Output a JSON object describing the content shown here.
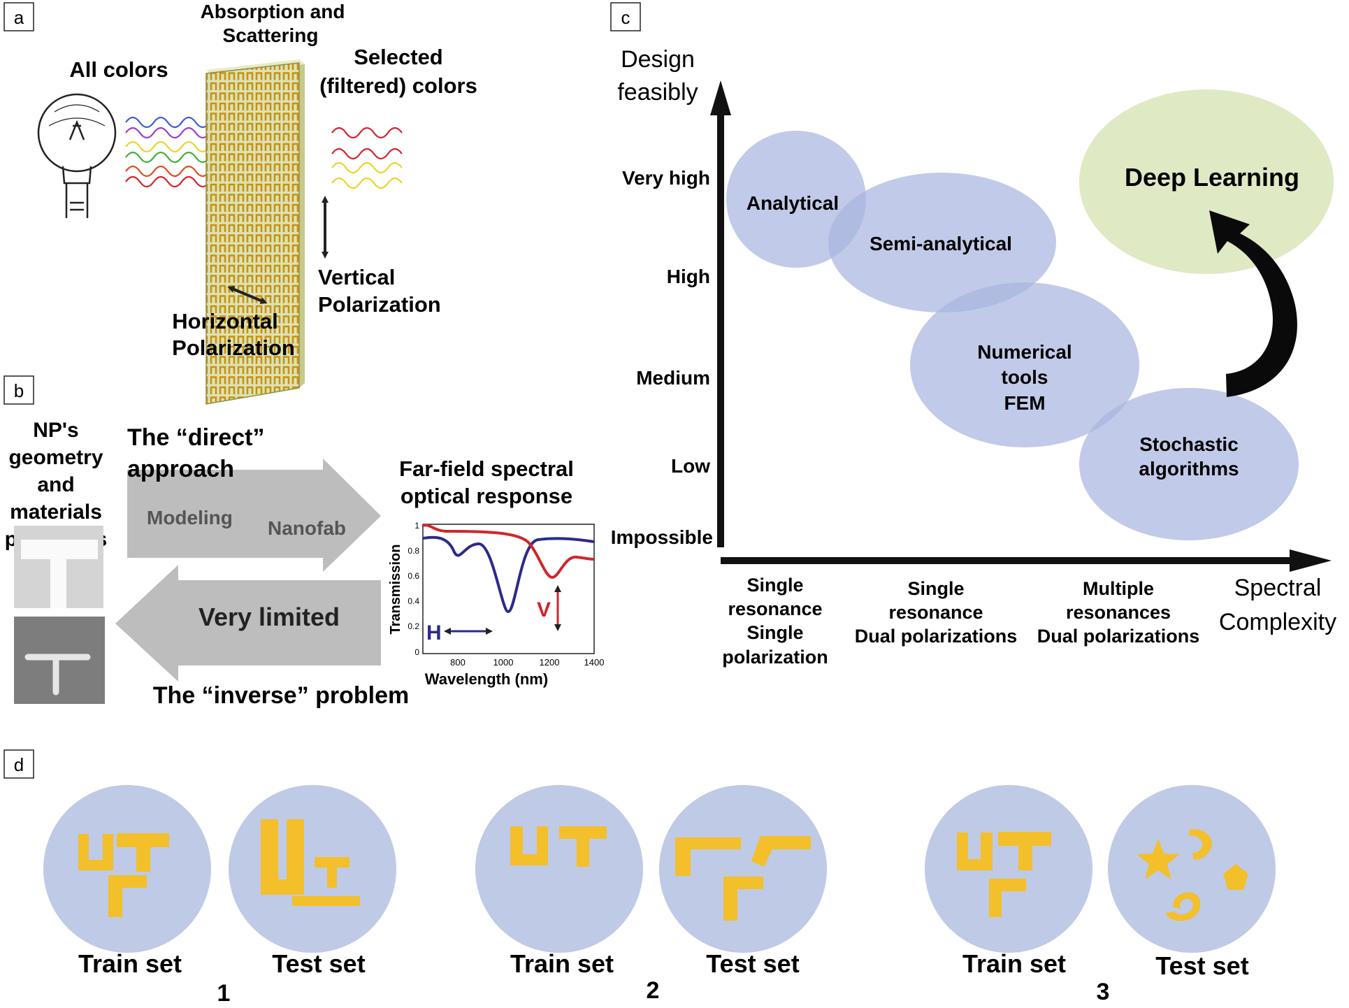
{
  "panels": {
    "a": "a",
    "b": "b",
    "c": "c",
    "d": "d"
  },
  "a": {
    "all_colors": "All colors",
    "absorption": [
      "Absorption and",
      "Scattering"
    ],
    "selected": [
      "Selected",
      "(filtered) colors"
    ],
    "vertical": [
      "Vertical",
      "Polarization"
    ],
    "horizontal": [
      "Horizontal",
      "Polarization"
    ]
  },
  "b": {
    "np": [
      "NP's",
      "geometry",
      "and",
      "materials",
      "properties"
    ],
    "direct": [
      "The “direct”",
      "approach"
    ],
    "modeling": "Modeling",
    "nanofab": "Nanofab",
    "very_limited": "Very limited",
    "inverse": "The “inverse” problem",
    "farfield": [
      "Far-field spectral",
      "optical response"
    ],
    "plot": {
      "ylabel": "Transmission",
      "xlabel": "Wavelength (nm)",
      "yticks": [
        "0",
        "0.2",
        "0.4",
        "0.6",
        "0.8",
        "1"
      ],
      "xticks": [
        "800",
        "1000",
        "1200",
        "1400"
      ],
      "h_label": "H",
      "v_label": "V",
      "blue_color": "#2b2a8c",
      "red_color": "#d0262a"
    }
  },
  "c": {
    "ytitle": [
      "Design",
      "feasibly"
    ],
    "xtitle": [
      "Spectral",
      "Complexity"
    ],
    "ylevels": [
      "Very high",
      "High",
      "Medium",
      "Low",
      "Impossible"
    ],
    "xcats": [
      [
        "Single",
        "resonance",
        "Single",
        "polarization"
      ],
      [
        "Single",
        "resonance",
        "Dual polarizations"
      ],
      [
        "Multiple",
        "resonances",
        "Dual polarizations"
      ]
    ],
    "methods": {
      "analytical": "Analytical",
      "semi": "Semi-analytical",
      "numerical": [
        "Numerical",
        "tools",
        "FEM"
      ],
      "stochastic": [
        "Stochastic",
        "algorithms"
      ],
      "deep": "Deep Learning"
    },
    "colors": {
      "ellipse": "#a9b6df",
      "deep": "#dfe9c3"
    }
  },
  "d": {
    "train": "Train set",
    "test": "Test set",
    "groups": [
      "1",
      "2",
      "3"
    ],
    "colors": {
      "circle": "#bfcae6",
      "shape": "#f3bf2a"
    }
  }
}
